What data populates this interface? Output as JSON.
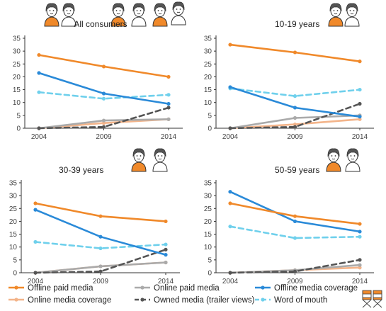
{
  "colors": {
    "offline_paid": "#f0892a",
    "online_paid": "#aaaaaa",
    "offline_coverage": "#2a8ad8",
    "online_coverage": "#f3b48a",
    "owned_media": "#555555",
    "word_of_mouth": "#6fd0ec",
    "axis": "#333333",
    "grid": "#d8d8d8",
    "figure_orange": "#f0892a"
  },
  "icons": {
    "people_all": [
      "person-icon",
      "person-icon",
      "person-icon",
      "person-icon",
      "person-icon",
      "person-icon"
    ],
    "people_10_19": [
      "person-icon",
      "person-icon"
    ],
    "people_30_39": [
      "person-icon",
      "person-icon"
    ],
    "people_50_59": [
      "person-icon",
      "person-icon"
    ],
    "legend_extra": "director-chairs-icon"
  },
  "legend": [
    {
      "key": "offline_paid",
      "label": "Offline paid media",
      "dash": false
    },
    {
      "key": "online_paid",
      "label": "Online paid media",
      "dash": false
    },
    {
      "key": "offline_coverage",
      "label": "Offline media coverage",
      "dash": false
    },
    {
      "key": "online_coverage",
      "label": "Online media coverage",
      "dash": false
    },
    {
      "key": "owned_media",
      "label": "Owned media (trailer views)",
      "dash": true
    },
    {
      "key": "word_of_mouth",
      "label": "Word of mouth",
      "dash": true
    }
  ],
  "chart_data": [
    {
      "type": "line",
      "title": "All consumers",
      "x": [
        "2004",
        "2009",
        "2014"
      ],
      "ylim": [
        0,
        35
      ],
      "yticks": [
        "0",
        "5",
        "10",
        "15",
        "20",
        "25",
        "30",
        "35"
      ],
      "grid": false,
      "series": [
        {
          "key": "offline_paid",
          "name": "Offline paid media",
          "values": [
            28.5,
            24,
            20
          ]
        },
        {
          "key": "offline_coverage",
          "name": "Offline media coverage",
          "values": [
            21.5,
            13.5,
            9.5
          ]
        },
        {
          "key": "word_of_mouth",
          "name": "Word of mouth",
          "values": [
            14,
            11.5,
            13
          ]
        },
        {
          "key": "online_paid",
          "name": "Online paid media",
          "values": [
            0,
            3,
            3.5
          ]
        },
        {
          "key": "online_coverage",
          "name": "Online media coverage",
          "values": [
            0,
            2,
            3.5
          ]
        },
        {
          "key": "owned_media",
          "name": "Owned media (trailer views)",
          "values": [
            0,
            0.5,
            8
          ]
        }
      ]
    },
    {
      "type": "line",
      "title": "10-19 years",
      "x": [
        "2004",
        "2009",
        "2014"
      ],
      "ylim": [
        0,
        35
      ],
      "yticks": [
        "0",
        "5",
        "10",
        "15",
        "20",
        "25",
        "30",
        "35"
      ],
      "grid": false,
      "series": [
        {
          "key": "offline_paid",
          "name": "Offline paid media",
          "values": [
            32.5,
            29.5,
            26
          ]
        },
        {
          "key": "offline_coverage",
          "name": "Offline media coverage",
          "values": [
            16,
            8,
            4.5
          ]
        },
        {
          "key": "word_of_mouth",
          "name": "Word of mouth",
          "values": [
            15.5,
            12.5,
            15
          ]
        },
        {
          "key": "online_paid",
          "name": "Online paid media",
          "values": [
            0,
            4,
            5
          ]
        },
        {
          "key": "online_coverage",
          "name": "Online media coverage",
          "values": [
            0,
            1.5,
            3.5
          ]
        },
        {
          "key": "owned_media",
          "name": "Owned media (trailer views)",
          "values": [
            0,
            0.5,
            9.5
          ]
        }
      ]
    },
    {
      "type": "line",
      "title": "30-39 years",
      "x": [
        "2004",
        "2009",
        "2014"
      ],
      "ylim": [
        0,
        35
      ],
      "yticks": [
        "0",
        "5",
        "10",
        "15",
        "20",
        "25",
        "30",
        "35"
      ],
      "grid": false,
      "series": [
        {
          "key": "offline_paid",
          "name": "Offline paid media",
          "values": [
            27,
            22,
            20
          ]
        },
        {
          "key": "offline_coverage",
          "name": "Offline media coverage",
          "values": [
            24.5,
            14,
            7
          ]
        },
        {
          "key": "word_of_mouth",
          "name": "Word of mouth",
          "values": [
            12,
            9.5,
            11
          ]
        },
        {
          "key": "online_paid",
          "name": "Online paid media",
          "values": [
            0,
            2.5,
            4
          ]
        },
        {
          "key": "online_coverage",
          "name": "Online media coverage",
          "values": [
            0,
            2.5,
            4
          ]
        },
        {
          "key": "owned_media",
          "name": "Owned media (trailer views)",
          "values": [
            0,
            0.5,
            9
          ]
        }
      ]
    },
    {
      "type": "line",
      "title": "50-59 years",
      "x": [
        "2004",
        "2009",
        "2014"
      ],
      "ylim": [
        0,
        35
      ],
      "yticks": [
        "0",
        "5",
        "10",
        "15",
        "20",
        "25",
        "30",
        "35"
      ],
      "grid": false,
      "series": [
        {
          "key": "offline_paid",
          "name": "Offline paid media",
          "values": [
            27,
            22,
            19
          ]
        },
        {
          "key": "offline_coverage",
          "name": "Offline media coverage",
          "values": [
            31.5,
            20,
            16
          ]
        },
        {
          "key": "word_of_mouth",
          "name": "Word of mouth",
          "values": [
            18,
            13.5,
            14
          ]
        },
        {
          "key": "online_paid",
          "name": "Online paid media",
          "values": [
            0,
            1,
            3
          ]
        },
        {
          "key": "online_coverage",
          "name": "Online media coverage",
          "values": [
            0,
            1,
            2
          ]
        },
        {
          "key": "owned_media",
          "name": "Owned media (trailer views)",
          "values": [
            0,
            0.5,
            5
          ]
        }
      ]
    }
  ]
}
